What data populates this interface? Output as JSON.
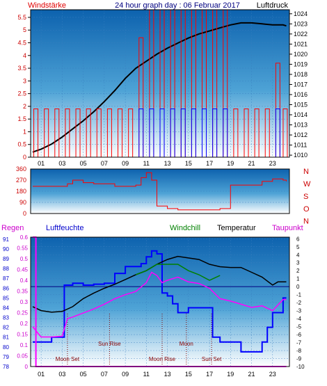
{
  "chart_data": [
    {
      "type": "line",
      "title": "24 hour graph day : 06 Februar 2017",
      "left_axis_label": "Windstärke",
      "right_axis_label": "Luftdruck",
      "y_left_ticks": [
        "0",
        "0.5",
        "1",
        "1.5",
        "2",
        "2.5",
        "3",
        "3.5",
        "4",
        "4.5",
        "5",
        "5.5"
      ],
      "y_left_range": [
        0,
        5.8
      ],
      "y_right_ticks": [
        "1010",
        "1011",
        "1012",
        "1013",
        "1014",
        "1015",
        "1016",
        "1017",
        "1018",
        "1019",
        "1020",
        "1021",
        "1022",
        "1023",
        "1024"
      ],
      "y_right_range": [
        1009.8,
        1024.4
      ],
      "x_range": [
        0,
        24.6
      ],
      "x_ticks": [
        "01",
        "03",
        "05",
        "07",
        "09",
        "11",
        "13",
        "15",
        "17",
        "19",
        "21",
        "23"
      ],
      "colors": {
        "pressure": "#000000",
        "gust": "#ff0000",
        "wind": "#0000ff"
      },
      "series": [
        {
          "key": "pressure",
          "x": [
            0.2,
            1,
            2,
            3,
            4,
            5,
            6,
            7,
            8,
            9,
            10,
            11,
            12,
            13,
            14,
            15,
            16,
            17,
            18,
            19,
            20,
            21,
            22,
            23,
            24,
            24.3
          ],
          "y": [
            1010.3,
            1010.6,
            1011.1,
            1011.8,
            1012.6,
            1013.4,
            1014.3,
            1015.3,
            1016.4,
            1017.6,
            1018.6,
            1019.3,
            1020.0,
            1020.6,
            1021.1,
            1021.6,
            1022.0,
            1022.3,
            1022.6,
            1022.9,
            1023.1,
            1023.1,
            1023.0,
            1022.9,
            1022.9,
            1022.8
          ]
        },
        {
          "key": "gust",
          "x": [
            0.5,
            1.5,
            2.5,
            3.5,
            4.5,
            5.5,
            6.5,
            7.5,
            8.5,
            9.5,
            10.5,
            11.5,
            12.5,
            13.5,
            14.5,
            15.5,
            16.5,
            17.5,
            18.5,
            19.5,
            20.5,
            21.5,
            22.5,
            23.5,
            24.2
          ],
          "y": [
            1.9,
            1.9,
            1.9,
            1.9,
            1.9,
            1.9,
            1.9,
            1.9,
            1.9,
            1.9,
            4.7,
            5.8,
            5.8,
            5.8,
            5.8,
            5.8,
            5.8,
            5.8,
            5.8,
            1.9,
            1.9,
            1.9,
            1.9,
            3.7,
            1.9
          ]
        },
        {
          "key": "wind",
          "x": [
            10.5,
            11.5,
            12.5,
            13.5,
            14.5,
            15.5,
            16.5,
            17.5,
            18.5,
            23.5
          ],
          "y": [
            1.9,
            1.9,
            1.9,
            1.9,
            1.9,
            1.9,
            1.9,
            1.9,
            1.9,
            1.9
          ]
        }
      ]
    },
    {
      "type": "line",
      "y_left_ticks": [
        "360",
        "270",
        "180",
        "90",
        "0"
      ],
      "y_left_range": [
        0,
        360
      ],
      "compass_labels": [
        "N",
        "W",
        "S",
        "O",
        "N"
      ],
      "x_range": [
        0,
        24.6
      ],
      "colors": {
        "direction": "#ff0000"
      },
      "series": [
        {
          "key": "direction",
          "x": [
            0.2,
            1,
            2,
            3,
            3.5,
            4,
            5,
            6,
            7,
            8,
            9,
            10,
            10.5,
            11,
            11.5,
            12,
            13,
            14,
            15,
            16,
            17,
            18,
            19,
            20,
            21,
            22,
            23,
            24,
            24.3
          ],
          "y": [
            220,
            220,
            220,
            220,
            240,
            270,
            250,
            240,
            240,
            220,
            220,
            230,
            290,
            330,
            270,
            60,
            40,
            30,
            30,
            30,
            30,
            40,
            230,
            230,
            230,
            260,
            280,
            270,
            260
          ]
        }
      ]
    },
    {
      "type": "line",
      "left_axis_label_1": "Regen",
      "left_axis_label_2": "Luftfeuchte",
      "top_labels": [
        "Windchill",
        "Temperatur",
        "Taupunkt"
      ],
      "y_rain_ticks": [
        "0",
        "0.05",
        "0.1",
        "0.15",
        "0.2",
        "0.25",
        "0.3",
        "0.35",
        "0.4",
        "0.45",
        "0.5",
        "0.55",
        "0.6"
      ],
      "y_rain_range": [
        0,
        0.6
      ],
      "y_hum_ticks": [
        "78",
        "79",
        "80",
        "81",
        "82",
        "83",
        "84",
        "85",
        "86",
        "87",
        "88",
        "89",
        "90",
        "91"
      ],
      "y_hum_range": [
        78,
        91.2
      ],
      "y_temp_ticks": [
        "-10",
        "-9",
        "-8",
        "-7",
        "-6",
        "-5",
        "-4",
        "-3",
        "-2",
        "-1",
        "0",
        "1",
        "2",
        "3",
        "4",
        "5",
        "6"
      ],
      "y_temp_range": [
        -10,
        6.2
      ],
      "x_range": [
        0,
        24.6
      ],
      "colors": {
        "humidity": "#0000ff",
        "temperature": "#000000",
        "dewpoint": "#ff00ff",
        "windchill": "#008000",
        "rain": "#ff00ff",
        "zero_line": "#000080"
      },
      "events": [
        {
          "label": "Moon Set",
          "x": 3.5
        },
        {
          "label": "Sun Rise",
          "x": 7.5
        },
        {
          "label": "Moon Rise",
          "x": 12.5
        },
        {
          "label": "Moon",
          "x": 14.8
        },
        {
          "label": "Sun Set",
          "x": 17.2
        }
      ],
      "series": [
        {
          "key": "humidity",
          "x": [
            0.2,
            1,
            2,
            3,
            3.2,
            4,
            5,
            6,
            7,
            8,
            9,
            10,
            10.5,
            11,
            11.5,
            12,
            12.5,
            13,
            13.5,
            14,
            15,
            16,
            17,
            17.3,
            18,
            19,
            20,
            21,
            22,
            22.5,
            23,
            24,
            24.3
          ],
          "y": [
            80.5,
            80.5,
            81,
            81,
            86.3,
            86.5,
            86.3,
            86.4,
            86.5,
            87.5,
            88.2,
            88.2,
            88.5,
            89.2,
            89.8,
            89.5,
            85.5,
            85.2,
            84.4,
            83.5,
            84.0,
            84.0,
            84.0,
            81.0,
            80.5,
            80.5,
            79.5,
            79.5,
            80.5,
            82.0,
            83.5,
            85.0,
            85.0
          ]
        },
        {
          "key": "temperature",
          "x": [
            0.2,
            1,
            2,
            3,
            4,
            5,
            6,
            7,
            8,
            9,
            10,
            11,
            12,
            13,
            14,
            15,
            16,
            17,
            18,
            19,
            20,
            21,
            22,
            23,
            23.5,
            24,
            24.3
          ],
          "y": [
            -2.5,
            -3.0,
            -3.2,
            -3.1,
            -2.5,
            -1.5,
            -0.8,
            -0.2,
            0.3,
            0.9,
            1.5,
            2.0,
            2.8,
            3.4,
            3.8,
            3.6,
            3.4,
            2.8,
            2.5,
            2.4,
            2.4,
            1.8,
            1.2,
            0.2,
            0.6,
            0.6,
            0.6
          ]
        },
        {
          "key": "dewpoint",
          "x": [
            0.2,
            0.8,
            1,
            2,
            3,
            3.5,
            4,
            5,
            6,
            7,
            8,
            9,
            10,
            11,
            11.5,
            12,
            12.5,
            13,
            14,
            15,
            16,
            17,
            18,
            19,
            20,
            21,
            22,
            23,
            24,
            24.3
          ],
          "y": [
            -5.0,
            -6.0,
            -6.3,
            -6.3,
            -6.2,
            -4.0,
            -3.8,
            -3.3,
            -2.8,
            -2.2,
            -1.5,
            -1.0,
            -0.6,
            0.5,
            1.8,
            1.4,
            0.5,
            0.8,
            1.2,
            0.6,
            0.4,
            -0.2,
            -1.5,
            -1.8,
            -2.2,
            -2.6,
            -2.4,
            -3.0,
            -1.6,
            -1.6
          ]
        },
        {
          "key": "windchill",
          "x": [
            10,
            11,
            12,
            13,
            14,
            15,
            16,
            17,
            18
          ],
          "y": [
            1.5,
            2.0,
            2.8,
            2.8,
            2.8,
            2.0,
            1.5,
            0.8,
            1.4
          ]
        },
        {
          "key": "rain",
          "x": [
            0.2,
            0.3,
            0.5,
            1,
            24.3
          ],
          "y": [
            0.6,
            0.6,
            0,
            0,
            0
          ]
        }
      ]
    }
  ]
}
